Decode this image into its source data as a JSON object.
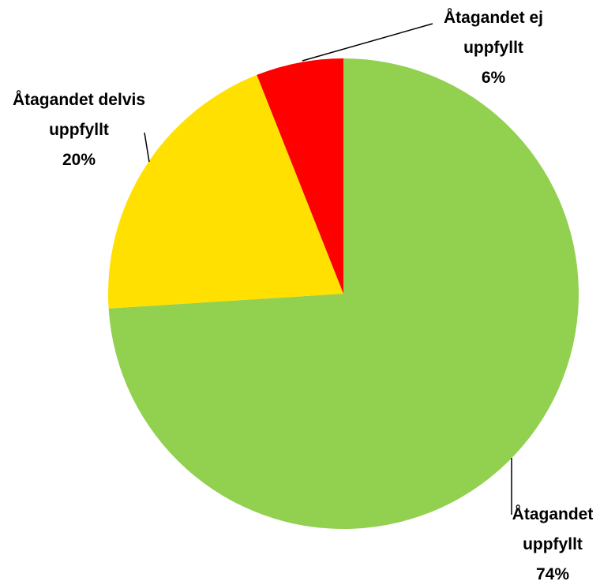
{
  "chart_data": {
    "type": "pie",
    "categories": [
      "Åtagandet uppfyllt",
      "Åtagandet delvis uppfyllt",
      "Åtagandet ej uppfyllt"
    ],
    "values": [
      74,
      20,
      6
    ],
    "value_labels": [
      "74%",
      "20%",
      "6%"
    ],
    "colors": [
      "#92d050",
      "#ffe000",
      "#ff0000"
    ]
  }
}
